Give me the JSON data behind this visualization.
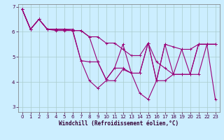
{
  "xlabel": "Windchill (Refroidissement éolien,°C)",
  "ylabel": "",
  "xlim": [
    -0.5,
    23.5
  ],
  "ylim": [
    2.8,
    7.1
  ],
  "yticks": [
    3,
    4,
    5,
    6,
    7
  ],
  "xticks": [
    0,
    1,
    2,
    3,
    4,
    5,
    6,
    7,
    8,
    9,
    10,
    11,
    12,
    13,
    14,
    15,
    16,
    17,
    18,
    19,
    20,
    21,
    22,
    23
  ],
  "bg_color": "#cceeff",
  "grid_color": "#aacccc",
  "line_color": "#990077",
  "lines": [
    [
      6.9,
      6.1,
      6.5,
      6.1,
      6.05,
      6.05,
      6.05,
      6.05,
      5.8,
      5.8,
      5.55,
      5.55,
      5.3,
      5.05,
      5.05,
      5.55,
      4.8,
      4.55,
      4.3,
      4.3,
      4.3,
      4.3,
      5.5,
      5.5
    ],
    [
      6.9,
      6.1,
      6.5,
      6.1,
      6.1,
      6.1,
      6.05,
      6.05,
      5.8,
      4.8,
      4.1,
      4.55,
      5.5,
      4.35,
      4.35,
      5.55,
      4.05,
      5.5,
      4.3,
      5.3,
      5.3,
      5.5,
      5.5,
      5.5
    ],
    [
      6.9,
      6.1,
      6.5,
      6.1,
      6.1,
      6.1,
      6.05,
      4.85,
      4.8,
      4.8,
      4.1,
      4.55,
      4.55,
      4.35,
      4.35,
      5.55,
      4.05,
      5.5,
      5.4,
      5.3,
      4.3,
      5.5,
      5.5,
      5.5
    ],
    [
      6.9,
      6.1,
      6.5,
      6.1,
      6.1,
      6.1,
      6.1,
      4.85,
      4.05,
      3.75,
      4.05,
      4.05,
      4.5,
      4.35,
      3.55,
      3.3,
      4.05,
      4.05,
      4.3,
      4.3,
      4.3,
      5.5,
      5.5,
      3.3
    ]
  ],
  "tick_fontsize": 5.0,
  "xlabel_fontsize": 5.5
}
